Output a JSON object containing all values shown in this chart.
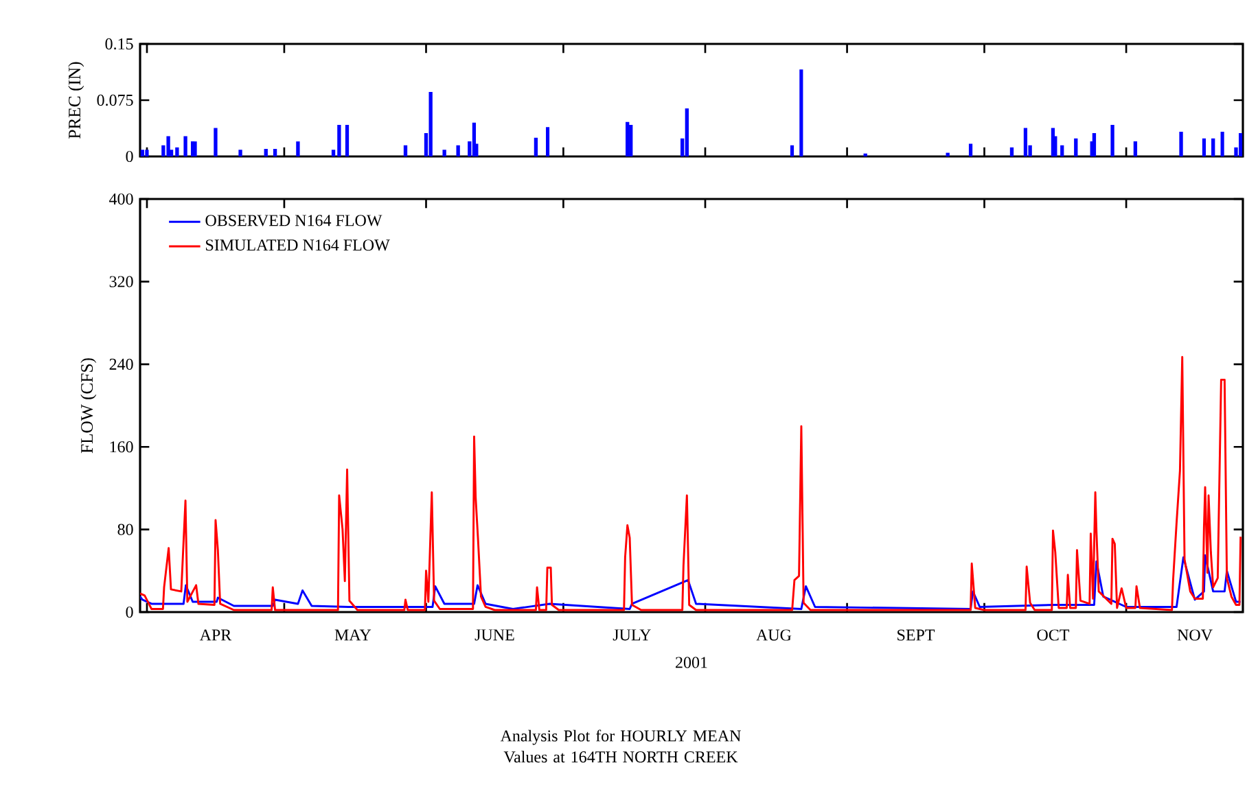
{
  "chart_data": [
    {
      "type": "bar",
      "ylabel": "PREC (IN)",
      "color": "#0000ff",
      "x": [
        "2001-03-31",
        "2001-04-01",
        "2001-04-04T14:00",
        "2001-04-05T16:00",
        "2001-04-06T08:00",
        "2001-04-07T14:00",
        "2001-04-09T10:00",
        "2001-04-11",
        "2001-04-11T12:00",
        "2001-04-16",
        "2001-04-21T10:00",
        "2001-04-27",
        "2001-04-29",
        "2001-05-04",
        "2001-05-11T18:00",
        "2001-05-13",
        "2001-05-14T18:00",
        "2001-05-27T12:00",
        "2001-06-01",
        "2001-06-02",
        "2001-06-05",
        "2001-06-08",
        "2001-06-10T12:00",
        "2001-06-11T12:00",
        "2001-06-12",
        "2001-06-25",
        "2001-06-27T14:00",
        "2001-07-15",
        "2001-07-15T18:00",
        "2001-07-27",
        "2001-07-28",
        "2001-08-20",
        "2001-08-22",
        "2001-09-05",
        "2001-09-23",
        "2001-09-28",
        "2001-10-07",
        "2001-10-10",
        "2001-10-11",
        "2001-10-16",
        "2001-10-16T12:00",
        "2001-10-18",
        "2001-10-21",
        "2001-10-24T12:00",
        "2001-10-25",
        "2001-10-29",
        "2001-11-03",
        "2001-11-13",
        "2001-11-18",
        "2001-11-20",
        "2001-11-22",
        "2001-11-25",
        "2001-11-26"
      ],
      "values": [
        0.009,
        0.009,
        0.015,
        0.027,
        0.009,
        0.012,
        0.027,
        0.02,
        0.02,
        0.038,
        0.009,
        0.01,
        0.01,
        0.02,
        0.009,
        0.042,
        0.042,
        0.015,
        0.031,
        0.086,
        0.009,
        0.015,
        0.02,
        0.045,
        0.017,
        0.025,
        0.039,
        0.046,
        0.042,
        0.024,
        0.064,
        0.015,
        0.116,
        0.004,
        0.005,
        0.017,
        0.012,
        0.038,
        0.015,
        0.038,
        0.027,
        0.015,
        0.024,
        0.02,
        0.031,
        0.042,
        0.02,
        0.033,
        0.024,
        0.024,
        0.033,
        0.012,
        0.031
      ],
      "xlim": [
        "2001-03-30T12:00",
        "2001-11-26T12:00"
      ],
      "xticks": [
        {
          "value": "2001-04-01",
          "label": null
        },
        {
          "value": "2001-05-01",
          "label": null
        },
        {
          "value": "2001-06-01",
          "label": null
        },
        {
          "value": "2001-07-01",
          "label": null
        },
        {
          "value": "2001-08-01",
          "label": null
        },
        {
          "value": "2001-09-01",
          "label": null
        },
        {
          "value": "2001-10-01",
          "label": null
        },
        {
          "value": "2001-11-01",
          "label": null
        }
      ],
      "ylim": [
        0,
        0.15
      ],
      "yticks": [
        0,
        0.075,
        0.15
      ],
      "tick_labels": "y"
    },
    {
      "type": "line",
      "title": "Analysis Plot for HOURLY MEAN Values at 164TH NORTH CREEK",
      "xlabel": "2001",
      "ylabel": "FLOW (CFS)",
      "legend": "top left",
      "marker": "none",
      "line_style": "solid",
      "xlim": [
        "2001-03-30T12:00",
        "2001-11-26T12:00"
      ],
      "xticks": [
        {
          "value": "2001-04-01",
          "label": null
        },
        {
          "value": "2001-05-01",
          "label": null
        },
        {
          "value": "2001-06-01",
          "label": null
        },
        {
          "value": "2001-07-01",
          "label": null
        },
        {
          "value": "2001-08-01",
          "label": null
        },
        {
          "value": "2001-09-01",
          "label": null
        },
        {
          "value": "2001-10-01",
          "label": null
        },
        {
          "value": "2001-11-01",
          "label": null
        },
        {
          "value": "2001-04-16",
          "label": "APR"
        },
        {
          "value": "2001-05-16",
          "label": "MAY"
        },
        {
          "value": "2001-06-16",
          "label": "JUNE"
        },
        {
          "value": "2001-07-16",
          "label": "JULY"
        },
        {
          "value": "2001-08-16",
          "label": "AUG"
        },
        {
          "value": "2001-09-16",
          "label": "SEPT"
        },
        {
          "value": "2001-10-16",
          "label": "OCT"
        },
        {
          "value": "2001-11-16",
          "label": "NOV"
        }
      ],
      "ylim": [
        0,
        400
      ],
      "yticks": [
        0,
        80,
        160,
        240,
        320,
        400
      ],
      "series": [
        {
          "name": "OBSERVED N164 FLOW",
          "color": "#0000ff",
          "x": [
            "2001-03-30T12:00",
            "2001-03-31",
            "2001-04-02",
            "2001-04-09",
            "2001-04-09T12:00",
            "2001-04-11",
            "2001-04-16T06:00",
            "2001-04-16T12:00",
            "2001-04-20",
            "2001-04-28T12:00",
            "2001-04-29",
            "2001-05-04",
            "2001-05-05",
            "2001-05-07",
            "2001-05-15",
            "2001-06-02T10:00",
            "2001-06-03",
            "2001-06-05",
            "2001-06-11T12:00",
            "2001-06-12T06:00",
            "2001-06-14",
            "2001-06-20",
            "2001-06-28",
            "2001-07-15T12:00",
            "2001-07-16",
            "2001-07-28T06:00",
            "2001-07-30",
            "2001-08-22",
            "2001-08-23",
            "2001-08-25",
            "2001-09-28",
            "2001-09-28T12:00",
            "2001-09-30",
            "2001-10-16T12:00",
            "2001-10-25",
            "2001-10-25T12:00",
            "2001-10-27",
            "2001-11-01",
            "2001-11-12",
            "2001-11-13T12:00",
            "2001-11-16",
            "2001-11-18",
            "2001-11-18T06:00",
            "2001-11-20",
            "2001-11-22T12:00",
            "2001-11-23",
            "2001-11-25",
            "2001-11-26"
          ],
          "values": [
            15,
            12,
            8,
            8,
            26,
            10,
            10,
            14,
            6,
            6,
            12,
            8,
            21,
            6,
            5,
            5,
            25,
            8,
            8,
            26,
            8,
            3,
            8,
            3,
            8,
            31,
            8,
            3,
            25,
            5,
            3,
            20,
            5,
            7,
            7,
            49,
            15,
            5,
            5,
            53,
            12,
            20,
            55,
            20,
            20,
            40,
            10,
            10
          ]
        },
        {
          "name": "SIMULATED N164 FLOW",
          "color": "#ff0000",
          "x": [
            "2001-03-30T12:00",
            "2001-03-31T12:00",
            "2001-04-02",
            "2001-04-04T12:00",
            "2001-04-04T18:00",
            "2001-04-05T18:00",
            "2001-04-06T06:00",
            "2001-04-08T12:00",
            "2001-04-09T10:00",
            "2001-04-09T20:00",
            "2001-04-11T18:00",
            "2001-04-12T06:00",
            "2001-04-15T18:00",
            "2001-04-16",
            "2001-04-16T12:00",
            "2001-04-17",
            "2001-04-20",
            "2001-04-28T06:00",
            "2001-04-28T12:00",
            "2001-04-29",
            "2001-05-12T18:00",
            "2001-05-13",
            "2001-05-13T18:00",
            "2001-05-14T06:00",
            "2001-05-14T18:00",
            "2001-05-15T06:00",
            "2001-05-17",
            "2001-05-27T06:00",
            "2001-05-27T12:00",
            "2001-05-28",
            "2001-05-31T18:00",
            "2001-06-01",
            "2001-06-01T12:00",
            "2001-06-02T06:00",
            "2001-06-02T18:00",
            "2001-06-04",
            "2001-06-11T06:00",
            "2001-06-11T12:00",
            "2001-06-11T20:00",
            "2001-06-12T08:00",
            "2001-06-13",
            "2001-06-14",
            "2001-06-16",
            "2001-06-25",
            "2001-06-25T06:00",
            "2001-06-25T18:00",
            "2001-06-27T06:00",
            "2001-06-27T12:00",
            "2001-06-28T06:00",
            "2001-06-28T12:00",
            "2001-06-30",
            "2001-07-14T06:00",
            "2001-07-14T12:00",
            "2001-07-15",
            "2001-07-15T12:00",
            "2001-07-16",
            "2001-07-18",
            "2001-07-27",
            "2001-07-27T06:00",
            "2001-07-28",
            "2001-07-28T12:00",
            "2001-07-30",
            "2001-08-20",
            "2001-08-20T12:00",
            "2001-08-21T12:00",
            "2001-08-22",
            "2001-08-22T12:00",
            "2001-08-24",
            "2001-09-28",
            "2001-09-28T06:00",
            "2001-09-29",
            "2001-10-01",
            "2001-10-10",
            "2001-10-10T06:00",
            "2001-10-11",
            "2001-10-12",
            "2001-10-15T18:00",
            "2001-10-16",
            "2001-10-16T12:00",
            "2001-10-17T06:00",
            "2001-10-19",
            "2001-10-19T06:00",
            "2001-10-19T18:00",
            "2001-10-21",
            "2001-10-21T06:00",
            "2001-10-22",
            "2001-10-24",
            "2001-10-24T06:00",
            "2001-10-24T18:00",
            "2001-10-25T06:00",
            "2001-10-25T12:00",
            "2001-10-26",
            "2001-10-28T18:00",
            "2001-10-29",
            "2001-10-29T12:00",
            "2001-10-30",
            "2001-10-31",
            "2001-11-01",
            "2001-11-03",
            "2001-11-03T06:00",
            "2001-11-04",
            "2001-11-11",
            "2001-11-11T06:00",
            "2001-11-12",
            "2001-11-12T18:00",
            "2001-11-13T06:00",
            "2001-11-13T18:00",
            "2001-11-15",
            "2001-11-16",
            "2001-11-17T18:00",
            "2001-11-18",
            "2001-11-18T06:00",
            "2001-11-18T18:00",
            "2001-11-19",
            "2001-11-19T12:00",
            "2001-11-20",
            "2001-11-21",
            "2001-11-21T18:00",
            "2001-11-22T12:00",
            "2001-11-23",
            "2001-11-24",
            "2001-11-25",
            "2001-11-25T18:00",
            "2001-11-26"
          ],
          "values": [
            18,
            16,
            3,
            3,
            24,
            62,
            22,
            20,
            108,
            10,
            26,
            8,
            7,
            89,
            60,
            8,
            2,
            2,
            24,
            2,
            2,
            113,
            80,
            30,
            138,
            11,
            2,
            2,
            12,
            2,
            2,
            40,
            10,
            116,
            11,
            3,
            3,
            170,
            111,
            72,
            15,
            5,
            2,
            2,
            24,
            2,
            2,
            43,
            43,
            7,
            2,
            2,
            53,
            84,
            72,
            7,
            2,
            2,
            45,
            113,
            7,
            2,
            2,
            31,
            35,
            180,
            9,
            2,
            2,
            47,
            4,
            2,
            2,
            44,
            9,
            2,
            2,
            79,
            58,
            4,
            4,
            36,
            4,
            4,
            60,
            11,
            8,
            76,
            13,
            116,
            78,
            20,
            8,
            71,
            66,
            4,
            23,
            4,
            4,
            25,
            4,
            2,
            31,
            86,
            137,
            247,
            51,
            20,
            13,
            13,
            82,
            121,
            38,
            113,
            58,
            24,
            33,
            225,
            225,
            33,
            15,
            7,
            7,
            73
          ]
        }
      ]
    }
  ]
}
